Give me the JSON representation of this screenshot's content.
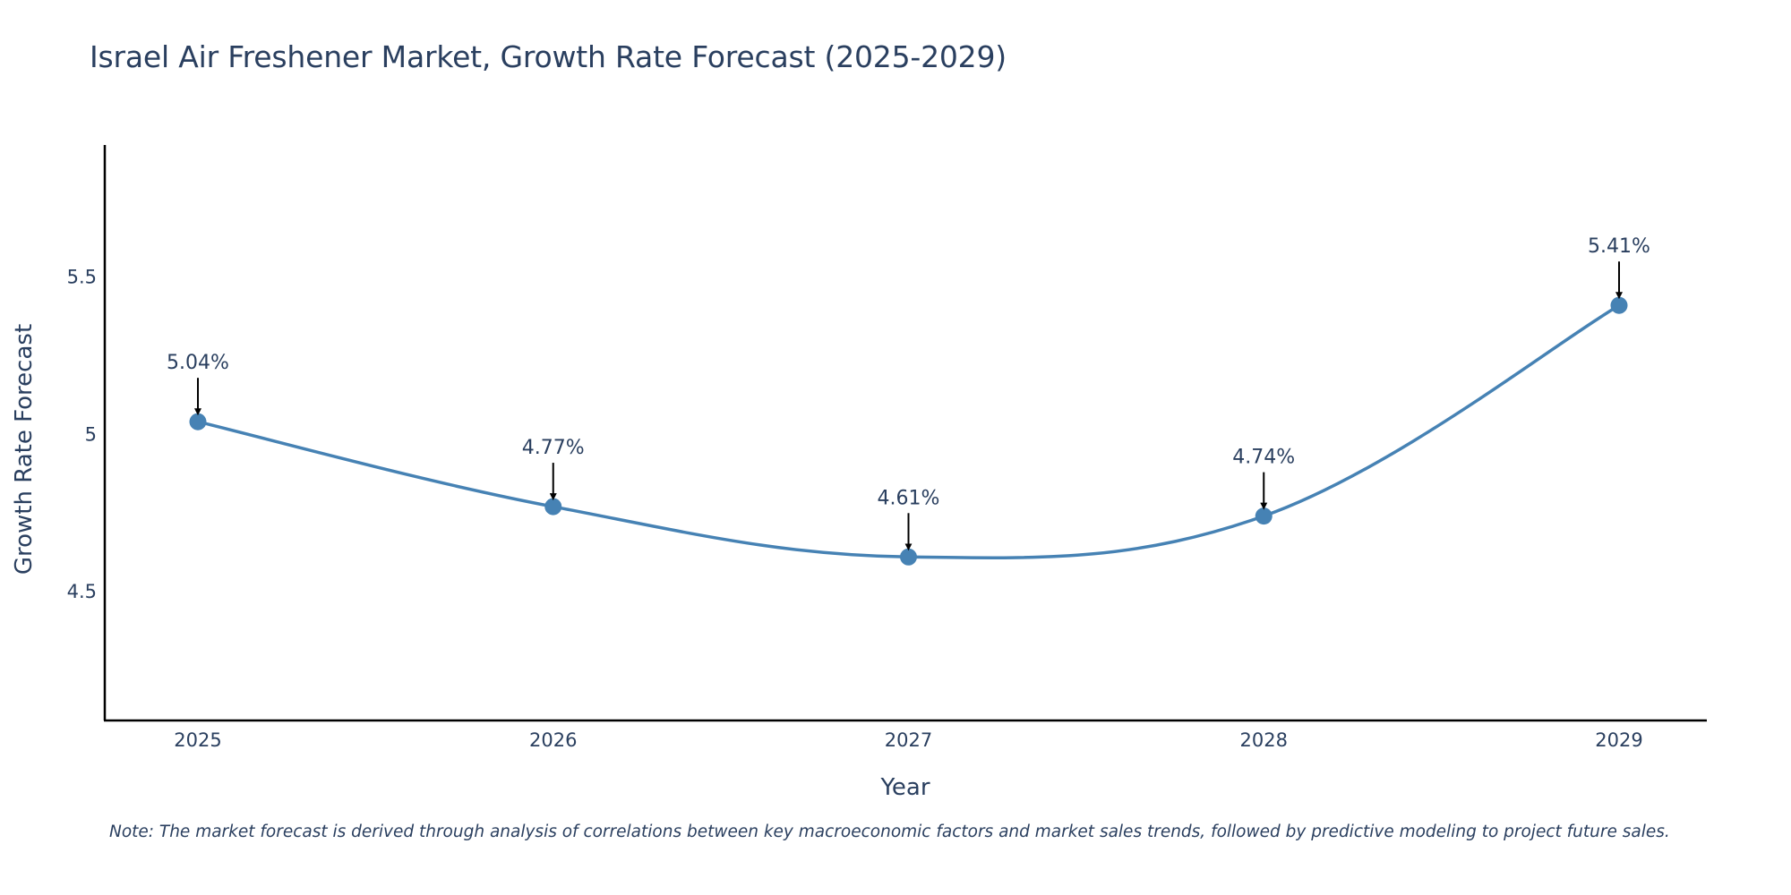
{
  "chart_data": {
    "type": "line",
    "title": "Israel Air Freshener Market, Growth Rate Forecast (2025-2029)",
    "xlabel": "Year",
    "ylabel": "Growth Rate Forecast",
    "categories": [
      "2025",
      "2026",
      "2027",
      "2028",
      "2029"
    ],
    "values": [
      5.04,
      4.77,
      4.61,
      4.74,
      5.41
    ],
    "data_labels": [
      "5.04%",
      "4.77%",
      "4.61%",
      "4.74%",
      "5.41%"
    ],
    "yticks": [
      4.5,
      5,
      5.5
    ],
    "ytick_labels": [
      "4.5",
      "5",
      "5.5"
    ],
    "ylim": [
      4.09,
      5.92
    ],
    "grid": false,
    "line_shape": "spline",
    "color": "#4682b4",
    "annotation_arrows": true,
    "note": "Note: The market forecast is derived through analysis of correlations between key macroeconomic factors and market sales trends, followed by predictive modeling to project future sales."
  }
}
